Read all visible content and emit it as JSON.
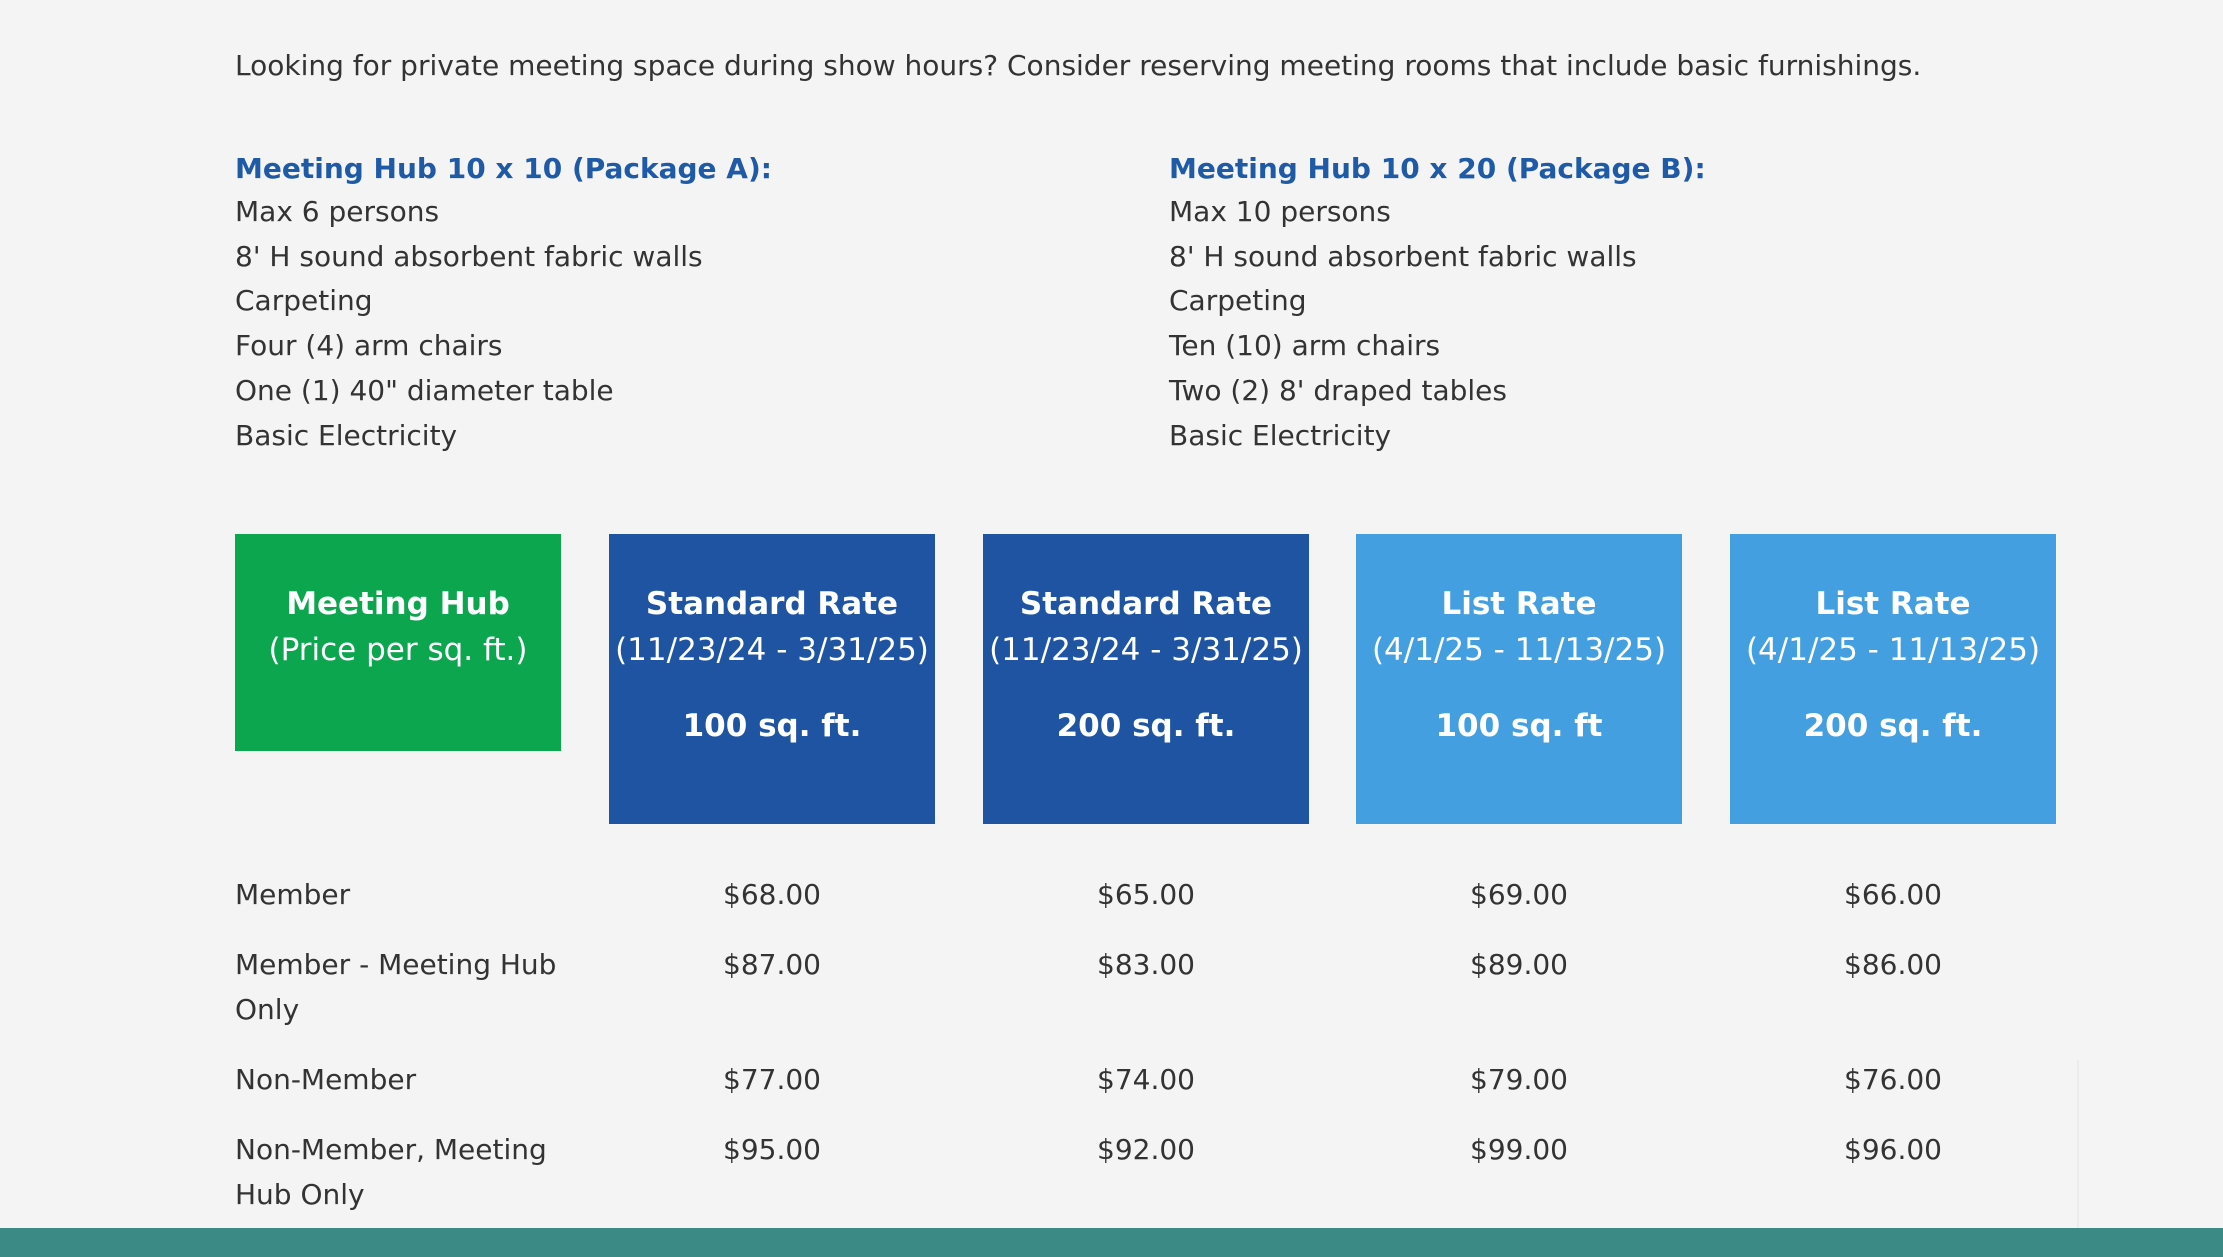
{
  "intro": "Looking for private meeting space during show hours? Consider reserving meeting rooms that include basic furnishings.",
  "packages": [
    {
      "title": "Meeting Hub 10 x 10 (Package A):",
      "items": [
        "Max 6 persons",
        "8' H sound absorbent fabric walls",
        "Carpeting",
        "Four (4) arm chairs",
        "One (1) 40\" diameter table",
        "Basic Electricity"
      ]
    },
    {
      "title": "Meeting Hub 10 x 20 (Package B):",
      "items": [
        "Max 10 persons",
        "8' H sound absorbent fabric walls",
        "Carpeting",
        "Ten (10) arm chairs",
        "Two (2) 8' draped tables",
        "Basic Electricity"
      ]
    }
  ],
  "table": {
    "headers": [
      {
        "line1": "Meeting Hub",
        "line2": "(Price per sq. ft.)",
        "line3": ""
      },
      {
        "line1": "Standard Rate",
        "line2": "(11/23/24 - 3/31/25)",
        "line3": "100 sq. ft."
      },
      {
        "line1": "Standard Rate",
        "line2": "(11/23/24 - 3/31/25)",
        "line3": "200 sq. ft."
      },
      {
        "line1": "List Rate",
        "line2": "(4/1/25 - 11/13/25)",
        "line3": "100 sq. ft"
      },
      {
        "line1": "List Rate",
        "line2": "(4/1/25 - 11/13/25)",
        "line3": "200 sq. ft."
      }
    ],
    "rows": [
      {
        "label": "Member",
        "prices": [
          "$68.00",
          "$65.00",
          "$69.00",
          "$66.00"
        ]
      },
      {
        "label": "Member - Meeting Hub Only",
        "prices": [
          "$87.00",
          "$83.00",
          "$89.00",
          "$86.00"
        ]
      },
      {
        "label": "Non-Member",
        "prices": [
          "$77.00",
          "$74.00",
          "$79.00",
          "$76.00"
        ]
      },
      {
        "label": "Non-Member, Meeting Hub Only",
        "prices": [
          "$95.00",
          "$92.00",
          "$99.00",
          "$96.00"
        ]
      }
    ]
  },
  "colors": {
    "title_blue": "#1f5aa6",
    "green_header": "#0ca64f",
    "standard_rate_header": "#1f54a3",
    "list_rate_header": "#449fe0",
    "footer": "#3b8a86"
  }
}
